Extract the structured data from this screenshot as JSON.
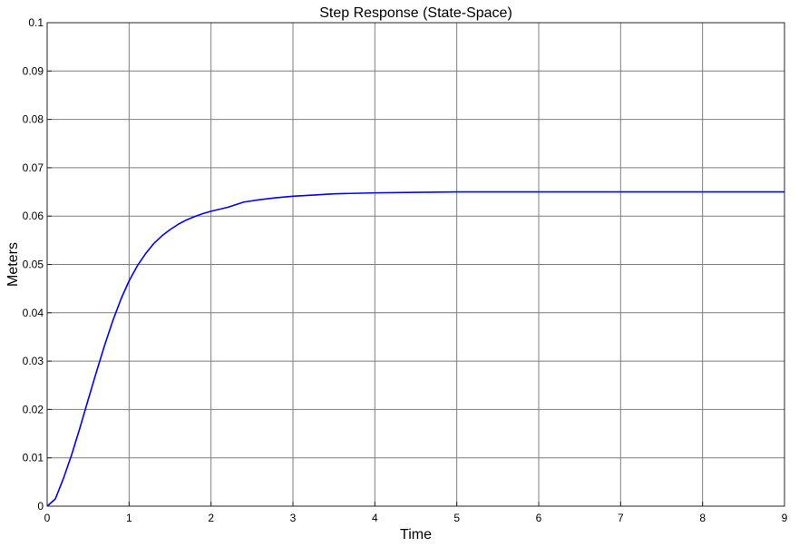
{
  "chart_data": {
    "type": "line",
    "title": "Step Response (State-Space)",
    "xlabel": "Time",
    "ylabel": "Meters",
    "xlim": [
      0,
      9
    ],
    "ylim": [
      0,
      0.1
    ],
    "xticks": [
      0,
      1,
      2,
      3,
      4,
      5,
      6,
      7,
      8,
      9
    ],
    "yticks": [
      0,
      0.01,
      0.02,
      0.03,
      0.04,
      0.05,
      0.06,
      0.07,
      0.08,
      0.09,
      0.1
    ],
    "xtick_labels": [
      "0",
      "1",
      "2",
      "3",
      "4",
      "5",
      "6",
      "7",
      "8",
      "9"
    ],
    "ytick_labels": [
      "0",
      "0.01",
      "0.02",
      "0.03",
      "0.04",
      "0.05",
      "0.06",
      "0.07",
      "0.08",
      "0.09",
      "0.1"
    ],
    "grid": true,
    "legend": "none",
    "series": [
      {
        "color": "#0000ff",
        "x": [
          0,
          0.1,
          0.2,
          0.3,
          0.4,
          0.5,
          0.6,
          0.7,
          0.8,
          0.9,
          1.0,
          1.1,
          1.2,
          1.3,
          1.4,
          1.5,
          1.6,
          1.7,
          1.8,
          1.9,
          2.0,
          2.2,
          2.4,
          2.6,
          2.8,
          3.0,
          3.2,
          3.5,
          4.0,
          4.5,
          5.0,
          6.0,
          7.0,
          8.0,
          9.0
        ],
        "y": [
          0,
          0.0015,
          0.0058,
          0.0107,
          0.0162,
          0.022,
          0.0277,
          0.0332,
          0.0383,
          0.0428,
          0.0466,
          0.0497,
          0.0522,
          0.0543,
          0.0559,
          0.0572,
          0.0583,
          0.0592,
          0.0599,
          0.0605,
          0.061,
          0.0618,
          0.0629,
          0.0634,
          0.0638,
          0.0641,
          0.0643,
          0.0646,
          0.0648,
          0.0649,
          0.065,
          0.065,
          0.065,
          0.065,
          0.065
        ]
      }
    ]
  }
}
